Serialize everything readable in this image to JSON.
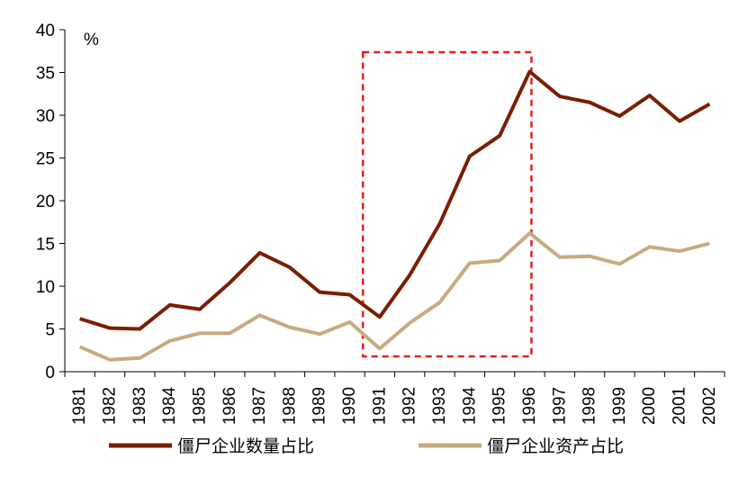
{
  "chart_data": {
    "type": "line",
    "x": [
      "1981",
      "1982",
      "1983",
      "1984",
      "1985",
      "1986",
      "1987",
      "1988",
      "1989",
      "1990",
      "1991",
      "1992",
      "1993",
      "1994",
      "1995",
      "1996",
      "1997",
      "1998",
      "1999",
      "2000",
      "2001",
      "2002"
    ],
    "series": [
      {
        "name": "僵尸企业数量占比",
        "color": "#7a1e00",
        "values": [
          6.2,
          5.1,
          5.0,
          7.8,
          7.3,
          10.4,
          13.9,
          12.2,
          9.3,
          9.0,
          6.4,
          11.3,
          17.3,
          25.2,
          27.6,
          35.1,
          32.2,
          31.5,
          29.9,
          32.3,
          29.3,
          31.3
        ]
      },
      {
        "name": "僵尸企业资产占比",
        "color": "#c8aa80",
        "values": [
          2.9,
          1.4,
          1.6,
          3.6,
          4.5,
          4.5,
          6.6,
          5.2,
          4.4,
          5.8,
          2.7,
          5.7,
          8.1,
          12.7,
          13.0,
          16.2,
          13.4,
          13.5,
          12.6,
          14.6,
          14.1,
          15.0
        ]
      }
    ],
    "title": "",
    "xlabel": "",
    "ylabel": "",
    "y_unit": "%",
    "ylim": [
      0,
      40
    ],
    "yticks": [
      0,
      5,
      10,
      15,
      20,
      25,
      30,
      35,
      40
    ],
    "grid": false,
    "legend": "bottom",
    "highlight_box": {
      "x_from": "1991",
      "x_to": "1996",
      "style": "dashed",
      "color": "#e0201c"
    }
  }
}
